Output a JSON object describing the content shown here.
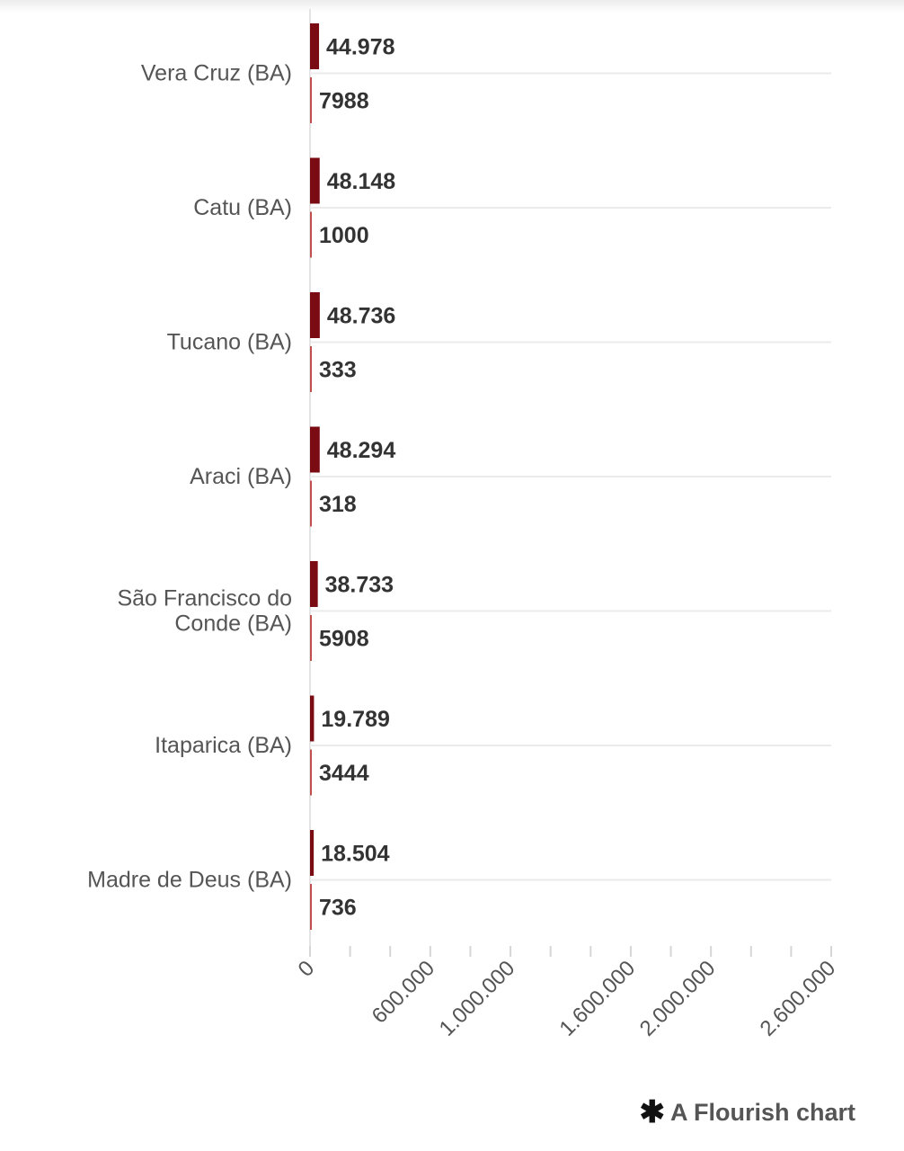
{
  "chart_data": {
    "type": "bar",
    "orientation": "horizontal",
    "categories": [
      "Vera Cruz (BA)",
      "Catu (BA)",
      "Tucano (BA)",
      "Araci (BA)",
      "São Francisco do Conde (BA)",
      "Itaparica (BA)",
      "Madre de Deus (BA)"
    ],
    "series": [
      {
        "values": [
          44978,
          48148,
          48736,
          48294,
          38733,
          19789,
          18504
        ],
        "value_labels": [
          "44.978",
          "48.148",
          "48.736",
          "48.294",
          "38.733",
          "19.789",
          "18.504"
        ],
        "color": "#7a0b12"
      },
      {
        "values": [
          7988,
          1000,
          333,
          318,
          5908,
          3444,
          736
        ],
        "value_labels": [
          "7988",
          "1000",
          "333",
          "318",
          "5908",
          "3444",
          "736"
        ],
        "color": "#c0504d"
      }
    ],
    "xlim": [
      0,
      2600000
    ],
    "x_ticks": [
      0,
      200000,
      400000,
      600000,
      800000,
      1000000,
      1200000,
      1400000,
      1600000,
      1800000,
      2000000,
      2200000,
      2400000,
      2600000
    ],
    "x_tick_labels": [
      "0",
      "600.000",
      "1.000.000",
      "1.600.000",
      "2.000.000",
      "2.600.000"
    ],
    "x_tick_label_values": [
      0,
      600000,
      1000000,
      1600000,
      2000000,
      2600000
    ],
    "grid": true,
    "legend": "none"
  },
  "footer": {
    "icon": "flourish-asterisk-icon",
    "text": "A Flourish chart"
  }
}
